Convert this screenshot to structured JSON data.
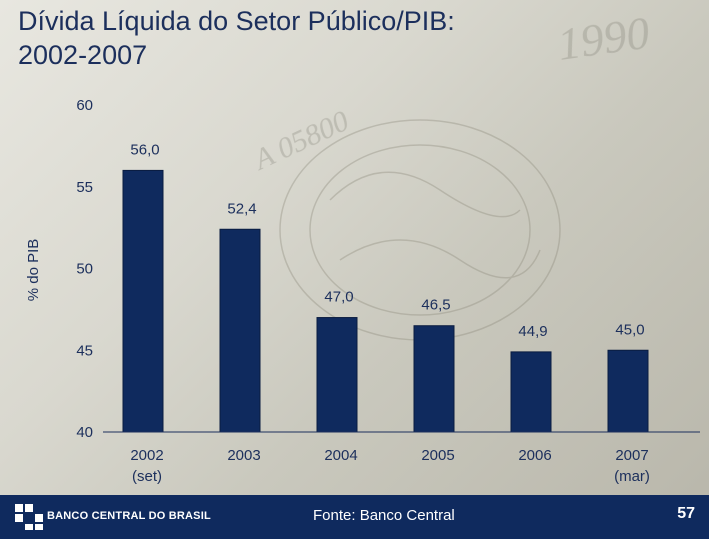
{
  "title": {
    "line1": "Dívida Líquida do Setor Público/PIB:",
    "line2": "2002-2007"
  },
  "chart_data": {
    "type": "bar",
    "ylabel": "% do PIB",
    "ylim": [
      40,
      60
    ],
    "yticks": [
      "60",
      "55",
      "50",
      "45",
      "40"
    ],
    "ytick_values": [
      60,
      55,
      50,
      45,
      40
    ],
    "categories": [
      [
        "2002",
        "(set)"
      ],
      [
        "2003"
      ],
      [
        "2004"
      ],
      [
        "2005"
      ],
      [
        "2006"
      ],
      [
        "2007",
        "(mar)"
      ]
    ],
    "values": [
      56.0,
      52.4,
      47.0,
      46.5,
      44.9,
      45.0
    ],
    "data_labels": [
      "56,0",
      "52,4",
      "47,0",
      "46,5",
      "44,9",
      "45,0"
    ],
    "bar_color": "#0f2a5e"
  },
  "footer": {
    "bank_name": "BANCO CENTRAL DO BRASIL",
    "logo_icon": "banco-central-logo-icon",
    "source": "Fonte: Banco Central",
    "page_number": "57"
  }
}
